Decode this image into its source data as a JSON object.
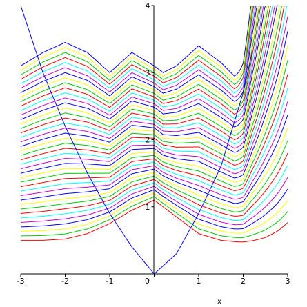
{
  "chart_data": {
    "type": "line",
    "title": "",
    "xlabel": "x",
    "ylabel": "",
    "xlim": [
      -3,
      3
    ],
    "ylim": [
      0,
      4
    ],
    "x_ticks": [
      "-3",
      "-2",
      "-1",
      "0",
      "1",
      "2",
      "3"
    ],
    "y_ticks": [
      "1",
      "2",
      "3",
      "4"
    ],
    "grid": false,
    "legend": "none",
    "series": [
      {
        "color": "#0000ff",
        "x": [
          -3.0,
          -2.5,
          -2.0,
          -1.5,
          -1.0,
          -0.5,
          0.0,
          0.5,
          1.0,
          1.5,
          2.0,
          2.2
        ],
        "y": [
          4.0,
          3.0,
          2.2,
          1.5,
          0.9,
          0.4,
          0.0,
          0.3,
          0.9,
          1.6,
          2.7,
          3.3
        ]
      }
    ],
    "family": {
      "count": 40,
      "colors": [
        "#ff0000",
        "#00cc00",
        "#ffff00",
        "#0000ff",
        "#cc00cc",
        "#00ffff"
      ],
      "base": {
        "x": [
          -3.0,
          -2.5,
          -2.0,
          -1.5,
          -1.0,
          -0.5,
          0.0,
          0.2,
          0.5,
          1.0,
          1.5,
          1.8,
          2.0,
          2.2,
          2.5,
          2.8,
          3.0
        ],
        "y": [
          0.5,
          0.5,
          0.52,
          0.6,
          0.75,
          0.95,
          1.1,
          1.0,
          0.85,
          0.6,
          0.5,
          0.48,
          0.47,
          0.47,
          0.47,
          0.5,
          0.55
        ]
      },
      "top": {
        "x": [
          -3.0,
          -2.5,
          -2.0,
          -1.5,
          -1.0,
          -0.5,
          0.0,
          0.2,
          0.5,
          1.0,
          1.5,
          1.8,
          2.0,
          2.2,
          2.5,
          2.8,
          3.0
        ],
        "y": [
          3.1,
          3.3,
          3.45,
          3.3,
          3.0,
          3.3,
          3.1,
          3.0,
          3.1,
          3.4,
          3.15,
          2.95,
          3.0,
          3.6,
          4.2,
          4.6,
          5.0
        ]
      },
      "upturn_start": 1.8
    }
  }
}
